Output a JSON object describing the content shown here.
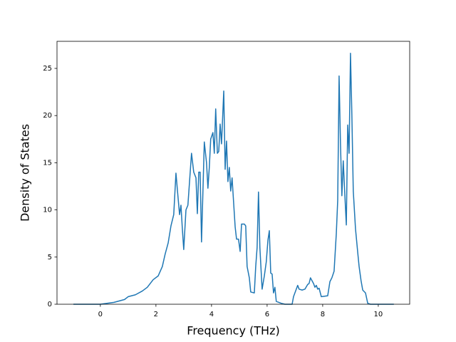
{
  "chart_data": {
    "type": "line",
    "xlabel": "Frequency (THz)",
    "ylabel": "Density of States",
    "xlim": [
      -1.56,
      11.13
    ],
    "ylim": [
      0,
      27.87
    ],
    "xticks": [
      0,
      2,
      4,
      6,
      8,
      10
    ],
    "yticks": [
      0,
      5,
      10,
      15,
      20,
      25
    ],
    "grid": false,
    "series": [
      {
        "color": "#1f77b4",
        "x": [
          -0.97,
          0,
          0.49,
          0.87,
          1.0,
          1.26,
          1.51,
          1.69,
          1.9,
          2.08,
          2.23,
          2.33,
          2.44,
          2.54,
          2.64,
          2.72,
          2.79,
          2.85,
          2.9,
          2.95,
          3.0,
          3.08,
          3.15,
          3.28,
          3.36,
          3.44,
          3.49,
          3.54,
          3.59,
          3.64,
          3.74,
          3.82,
          3.87,
          3.92,
          3.97,
          4.05,
          4.1,
          4.15,
          4.21,
          4.26,
          4.31,
          4.36,
          4.44,
          4.49,
          4.54,
          4.59,
          4.64,
          4.69,
          4.74,
          4.79,
          4.85,
          4.9,
          4.97,
          5.03,
          5.08,
          5.18,
          5.23,
          5.28,
          5.36,
          5.41,
          5.54,
          5.59,
          5.64,
          5.69,
          5.74,
          5.82,
          5.9,
          5.97,
          6.03,
          6.08,
          6.13,
          6.18,
          6.23,
          6.28,
          6.33,
          6.51,
          6.64,
          6.9,
          6.95,
          7.1,
          7.15,
          7.26,
          7.36,
          7.46,
          7.51,
          7.56,
          7.67,
          7.72,
          7.77,
          7.82,
          7.87,
          7.95,
          8.18,
          8.26,
          8.33,
          8.41,
          8.49,
          8.54,
          8.59,
          8.64,
          8.69,
          8.74,
          8.79,
          8.85,
          8.9,
          8.95,
          9.0,
          9.05,
          9.1,
          9.18,
          9.26,
          9.31,
          9.38,
          9.44,
          9.54,
          9.62,
          9.72,
          10.56
        ],
        "values": [
          0,
          0,
          0.2,
          0.5,
          0.8,
          1.0,
          1.4,
          1.8,
          2.6,
          3.0,
          4.0,
          5.3,
          6.5,
          8.3,
          9.5,
          13.9,
          11.5,
          9.5,
          10.5,
          8.0,
          5.8,
          10.0,
          10.5,
          16.0,
          14.0,
          13.4,
          9.6,
          14.0,
          14.0,
          6.6,
          17.2,
          15.0,
          12.3,
          14.5,
          17.5,
          18.2,
          16.0,
          20.7,
          16.0,
          16.2,
          19.1,
          17.0,
          22.6,
          14.3,
          17.3,
          13.0,
          14.5,
          12.0,
          13.4,
          11.0,
          8.2,
          6.9,
          6.9,
          5.6,
          8.5,
          8.5,
          8.3,
          4.0,
          2.8,
          1.3,
          1.2,
          4.0,
          6.0,
          11.9,
          6.0,
          1.6,
          3.0,
          4.5,
          6.8,
          7.8,
          3.3,
          3.2,
          1.2,
          1.8,
          0.3,
          0.1,
          0,
          0,
          0.8,
          2.0,
          1.6,
          1.5,
          1.6,
          2.1,
          2.2,
          2.8,
          2.2,
          1.8,
          2.0,
          1.6,
          1.7,
          0.8,
          0.9,
          2.4,
          2.8,
          3.5,
          7.5,
          11.0,
          24.2,
          17.0,
          11.5,
          15.2,
          12.0,
          8.4,
          19.0,
          16.0,
          26.6,
          20.0,
          12.0,
          8.0,
          5.5,
          4.0,
          2.5,
          1.5,
          1.2,
          0.1,
          0,
          0
        ]
      }
    ]
  }
}
